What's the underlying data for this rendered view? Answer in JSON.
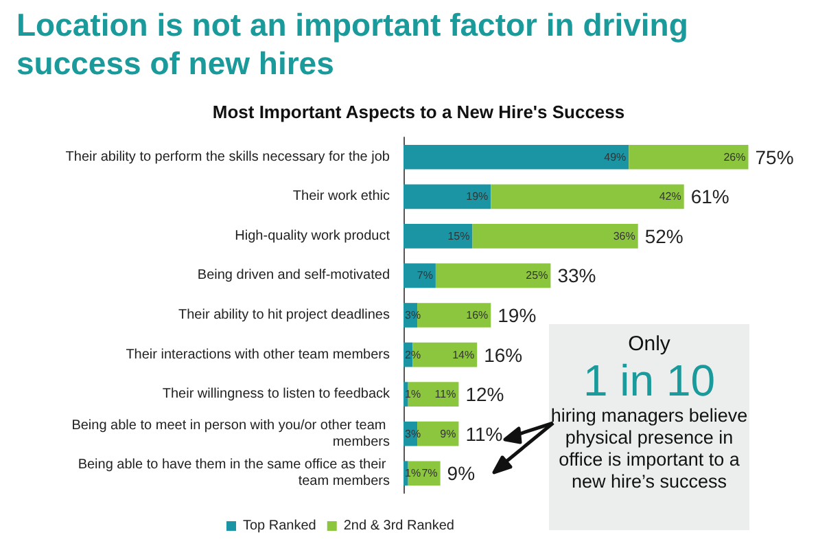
{
  "chart_data": {
    "type": "bar",
    "orientation": "horizontal",
    "stacked": true,
    "title": "Location is not an important factor in driving success of new hires",
    "subtitle": "Most Important Aspects to a New Hire's Success",
    "categories": [
      "Their ability to perform the skills necessary for the job",
      "Their work ethic",
      "High-quality work product",
      "Being driven and self-motivated",
      "Their ability to hit project deadlines",
      "Their interactions with other team members",
      "Their willingness to listen to feedback",
      "Being able to meet in person with you/or other team members",
      "Being able to have them in the same office as their team members"
    ],
    "series": [
      {
        "name": "Top Ranked",
        "color": "#1b95a3",
        "values": [
          49,
          19,
          15,
          7,
          3,
          2,
          1,
          3,
          1
        ],
        "value_labels": [
          "49%",
          "19%",
          "15%",
          "7%",
          "3%",
          "2%",
          "1%",
          "3%",
          "1%"
        ]
      },
      {
        "name": "2nd & 3rd Ranked",
        "color": "#8cc63f",
        "values": [
          26,
          42,
          36,
          25,
          16,
          14,
          11,
          9,
          7
        ],
        "value_labels": [
          "26%",
          "42%",
          "36%",
          "25%",
          "16%",
          "14%",
          "11%",
          "9%",
          "7%"
        ]
      }
    ],
    "totals": [
      "75%",
      "61%",
      "52%",
      "33%",
      "19%",
      "16%",
      "12%",
      "11%",
      "9%"
    ],
    "legend": "bottom",
    "annotations": [
      "Only",
      "1 in 10",
      "hiring managers believe physical presence in office is important to a new hire’s success"
    ]
  }
}
